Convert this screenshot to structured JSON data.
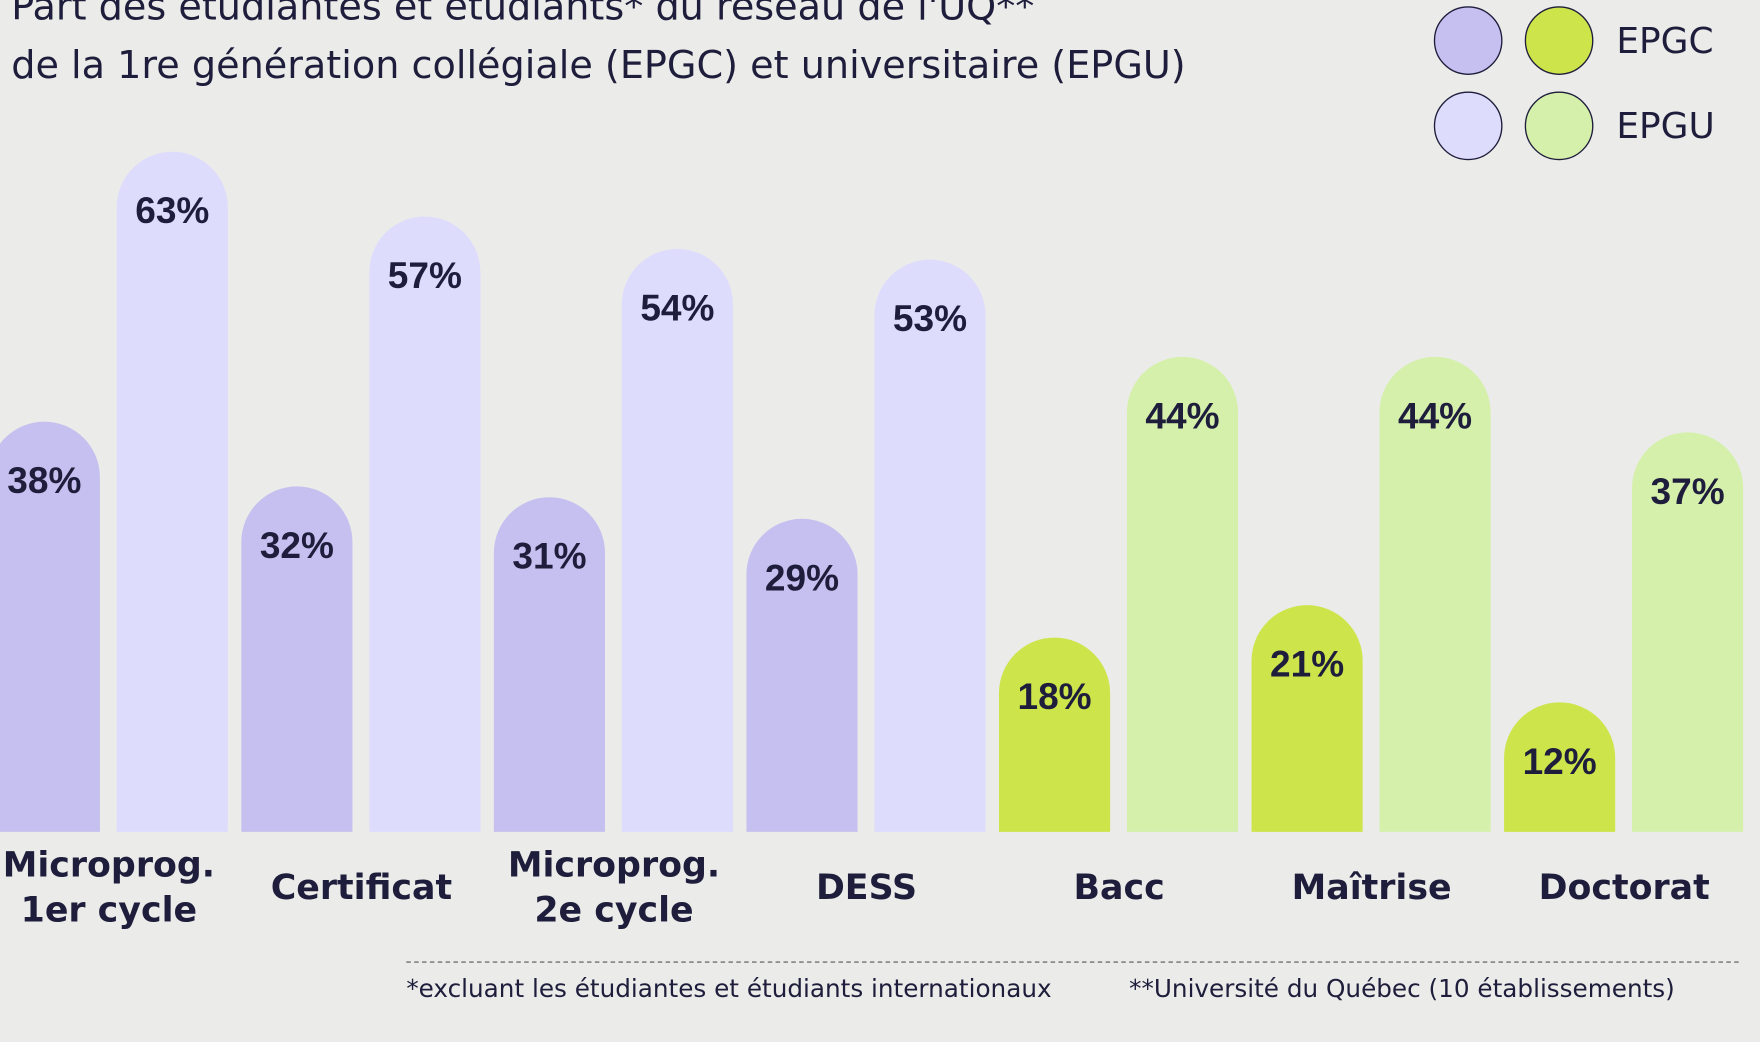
{
  "chart_data": {
    "type": "bar",
    "title": [
      "Part des étudiantes et étudiants* du réseau de l'UQ**",
      "de la 1re génération collégiale (EPGC) et universitaire (EPGU)"
    ],
    "categories": [
      [
        "Microprog.",
        "1er cycle"
      ],
      [
        "Certificat"
      ],
      [
        "Microprog.",
        "2e cycle"
      ],
      [
        "DESS"
      ],
      [
        "Bacc"
      ],
      [
        "Maîtrise"
      ],
      [
        "Doctorat"
      ]
    ],
    "series": [
      {
        "name": "EPGC",
        "colors": [
          "#c5c0ef",
          "#c5c0ef",
          "#c5c0ef",
          "#c5c0ef",
          "#cde54a",
          "#cde54a",
          "#cde54a"
        ],
        "values": [
          38,
          32,
          31,
          29,
          18,
          21,
          12
        ],
        "value_labels": [
          "38%",
          "32%",
          "31%",
          "29%",
          "18%",
          "21%",
          "12%"
        ]
      },
      {
        "name": "EPGU",
        "colors": [
          "#dedcfc",
          "#dedcfc",
          "#dedcfc",
          "#dedcfc",
          "#d5f0ab",
          "#d5f0ab",
          "#d5f0ab"
        ],
        "values": [
          63,
          57,
          54,
          53,
          44,
          44,
          37
        ],
        "value_labels": [
          "63%",
          "57%",
          "54%",
          "53%",
          "44%",
          "44%",
          "37%"
        ]
      }
    ],
    "footnotes": [
      "*excluant les étudiantes et étudiants internationaux",
      "**Université du Québec (10 établissements)"
    ]
  }
}
